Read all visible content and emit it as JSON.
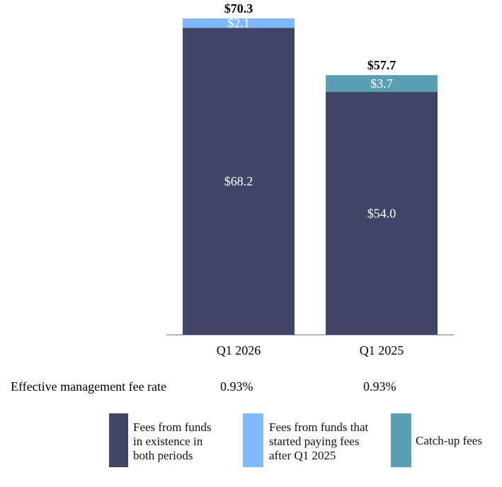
{
  "chart_data": {
    "type": "bar",
    "stacked": true,
    "categories": [
      "Q1 2026",
      "Q1 2025"
    ],
    "series": [
      {
        "name": "Fees from funds in existence in both periods",
        "values": [
          68.2,
          54.0
        ],
        "labels": [
          "$68.2",
          "$54.0"
        ],
        "color": "#3f4666"
      },
      {
        "name": "Fees from funds that started paying fees after Q1 2025",
        "values": [
          2.1,
          0
        ],
        "labels": [
          "$2.1",
          ""
        ],
        "color": "#7fb8ff"
      },
      {
        "name": "Catch-up fees",
        "values": [
          0,
          3.7
        ],
        "labels": [
          "",
          "$3.7"
        ],
        "color": "#5b9fb4"
      }
    ],
    "totals": [
      "$70.3",
      "$57.7"
    ],
    "title": "",
    "xlabel": "",
    "ylabel": "",
    "ylim": [
      0,
      70.3
    ],
    "grid": false,
    "legend_position": "bottom"
  },
  "rate_row": {
    "label": "Effective management fee rate",
    "values": [
      "0.93%",
      "0.93%"
    ]
  },
  "legend": {
    "items": [
      {
        "lines": [
          "Fees from funds",
          "in existence in",
          "both periods"
        ],
        "color": "#3f4666"
      },
      {
        "lines": [
          "Fees from funds that",
          "started paying fees",
          "after Q1 2025"
        ],
        "color": "#7fb8ff"
      },
      {
        "lines": [
          "Catch-up fees"
        ],
        "color": "#5b9fb4"
      }
    ]
  },
  "colors": {
    "axis": "#9a9a9a",
    "bar_label_text": "#ffffff"
  }
}
